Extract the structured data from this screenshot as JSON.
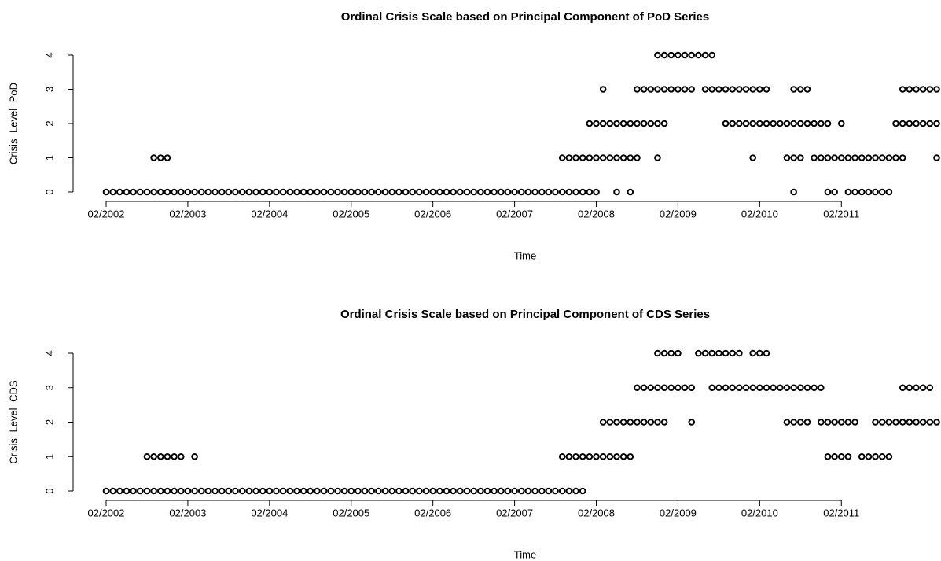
{
  "chart_data": [
    {
      "type": "scatter",
      "title": "Ordinal Crisis Scale based on Principal Component of PoD Series",
      "x_label": "Time",
      "y_label": "Crisis Level PoD",
      "xlim": [
        "2002-02",
        "2012-04"
      ],
      "xticks": [
        {
          "value": "2002-02",
          "label": "02/2002"
        },
        {
          "value": "2003-02",
          "label": "02/2003"
        },
        {
          "value": "2004-02",
          "label": "02/2004"
        },
        {
          "value": "2005-02",
          "label": "02/2005"
        },
        {
          "value": "2006-02",
          "label": "02/2006"
        },
        {
          "value": "2007-02",
          "label": "02/2007"
        },
        {
          "value": "2008-02",
          "label": "02/2008"
        },
        {
          "value": "2009-02",
          "label": "02/2009"
        },
        {
          "value": "2010-02",
          "label": "02/2010"
        },
        {
          "value": "2011-02",
          "label": "02/2011"
        }
      ],
      "ylim": [
        0,
        4
      ],
      "yticks": [
        0,
        1,
        2,
        3,
        4
      ],
      "color": "#000000",
      "x": [
        "2002-02",
        "2002-03",
        "2002-04",
        "2002-05",
        "2002-06",
        "2002-07",
        "2002-08",
        "2002-09",
        "2002-10",
        "2002-11",
        "2002-12",
        "2003-01",
        "2003-02",
        "2003-03",
        "2003-04",
        "2003-05",
        "2003-06",
        "2003-07",
        "2003-08",
        "2003-09",
        "2003-10",
        "2003-11",
        "2003-12",
        "2004-01",
        "2004-02",
        "2004-03",
        "2004-04",
        "2004-05",
        "2004-06",
        "2004-07",
        "2004-08",
        "2004-09",
        "2004-10",
        "2004-11",
        "2004-12",
        "2005-01",
        "2005-02",
        "2005-03",
        "2005-04",
        "2005-05",
        "2005-06",
        "2005-07",
        "2005-08",
        "2005-09",
        "2005-10",
        "2005-11",
        "2005-12",
        "2006-01",
        "2006-02",
        "2006-03",
        "2006-04",
        "2006-05",
        "2006-06",
        "2006-07",
        "2006-08",
        "2006-09",
        "2006-10",
        "2006-11",
        "2006-12",
        "2007-01",
        "2007-02",
        "2007-03",
        "2007-04",
        "2007-05",
        "2007-06",
        "2007-07",
        "2007-08",
        "2007-09",
        "2007-10",
        "2007-11",
        "2007-12",
        "2008-01",
        "2008-02",
        "2008-05",
        "2008-07",
        "2010-07",
        "2010-12",
        "2011-01",
        "2011-03",
        "2011-04",
        "2011-05",
        "2011-06",
        "2011-07",
        "2011-08",
        "2011-09",
        "2002-09",
        "2002-10",
        "2002-11",
        "2007-09",
        "2007-10",
        "2007-11",
        "2007-12",
        "2008-01",
        "2008-02",
        "2008-03",
        "2008-04",
        "2008-05",
        "2008-06",
        "2008-07",
        "2008-08",
        "2008-11",
        "2010-01",
        "2010-06",
        "2010-07",
        "2010-08",
        "2010-10",
        "2010-11",
        "2010-12",
        "2011-01",
        "2011-02",
        "2011-03",
        "2011-04",
        "2011-05",
        "2011-06",
        "2011-07",
        "2011-08",
        "2011-09",
        "2011-10",
        "2011-11",
        "2012-04",
        "2008-01",
        "2008-02",
        "2008-03",
        "2008-04",
        "2008-05",
        "2008-06",
        "2008-07",
        "2008-08",
        "2008-09",
        "2008-10",
        "2008-11",
        "2008-12",
        "2009-09",
        "2009-10",
        "2009-11",
        "2009-12",
        "2010-01",
        "2010-02",
        "2010-03",
        "2010-04",
        "2010-05",
        "2010-06",
        "2010-07",
        "2010-08",
        "2010-09",
        "2010-10",
        "2010-11",
        "2010-12",
        "2011-02",
        "2011-10",
        "2011-11",
        "2011-12",
        "2012-01",
        "2012-02",
        "2012-03",
        "2012-04",
        "2008-03",
        "2008-08",
        "2008-09",
        "2008-10",
        "2008-11",
        "2008-12",
        "2009-01",
        "2009-02",
        "2009-03",
        "2009-04",
        "2009-06",
        "2009-07",
        "2009-08",
        "2009-09",
        "2009-10",
        "2009-11",
        "2009-12",
        "2010-01",
        "2010-02",
        "2010-03",
        "2010-07",
        "2010-08",
        "2010-09",
        "2011-11",
        "2011-12",
        "2012-01",
        "2012-02",
        "2012-03",
        "2012-04",
        "2008-11",
        "2008-12",
        "2009-01",
        "2009-02",
        "2009-03",
        "2009-04",
        "2009-05",
        "2009-06",
        "2009-07"
      ],
      "values": [
        0,
        0,
        0,
        0,
        0,
        0,
        0,
        0,
        0,
        0,
        0,
        0,
        0,
        0,
        0,
        0,
        0,
        0,
        0,
        0,
        0,
        0,
        0,
        0,
        0,
        0,
        0,
        0,
        0,
        0,
        0,
        0,
        0,
        0,
        0,
        0,
        0,
        0,
        0,
        0,
        0,
        0,
        0,
        0,
        0,
        0,
        0,
        0,
        0,
        0,
        0,
        0,
        0,
        0,
        0,
        0,
        0,
        0,
        0,
        0,
        0,
        0,
        0,
        0,
        0,
        0,
        0,
        0,
        0,
        0,
        0,
        0,
        0,
        0,
        0,
        0,
        0,
        0,
        0,
        0,
        0,
        0,
        0,
        0,
        0,
        1,
        1,
        1,
        1,
        1,
        1,
        1,
        1,
        1,
        1,
        1,
        1,
        1,
        1,
        1,
        1,
        1,
        1,
        1,
        1,
        1,
        1,
        1,
        1,
        1,
        1,
        1,
        1,
        1,
        1,
        1,
        1,
        1,
        1,
        1,
        2,
        2,
        2,
        2,
        2,
        2,
        2,
        2,
        2,
        2,
        2,
        2,
        2,
        2,
        2,
        2,
        2,
        2,
        2,
        2,
        2,
        2,
        2,
        2,
        2,
        2,
        2,
        2,
        2,
        2,
        2,
        2,
        2,
        2,
        2,
        2,
        3,
        3,
        3,
        3,
        3,
        3,
        3,
        3,
        3,
        3,
        3,
        3,
        3,
        3,
        3,
        3,
        3,
        3,
        3,
        3,
        3,
        3,
        3,
        3,
        3,
        3,
        3,
        3,
        3,
        4,
        4,
        4,
        4,
        4,
        4,
        4,
        4,
        4
      ]
    },
    {
      "type": "scatter",
      "title": "Ordinal Crisis Scale based on Principal Component of CDS Series",
      "x_label": "Time",
      "y_label": "Crisis Level CDS",
      "xlim": [
        "2002-02",
        "2012-04"
      ],
      "xticks": [
        {
          "value": "2002-02",
          "label": "02/2002"
        },
        {
          "value": "2003-02",
          "label": "02/2003"
        },
        {
          "value": "2004-02",
          "label": "02/2004"
        },
        {
          "value": "2005-02",
          "label": "02/2005"
        },
        {
          "value": "2006-02",
          "label": "02/2006"
        },
        {
          "value": "2007-02",
          "label": "02/2007"
        },
        {
          "value": "2008-02",
          "label": "02/2008"
        },
        {
          "value": "2009-02",
          "label": "02/2009"
        },
        {
          "value": "2010-02",
          "label": "02/2010"
        },
        {
          "value": "2011-02",
          "label": "02/2011"
        }
      ],
      "ylim": [
        0,
        4
      ],
      "yticks": [
        0,
        1,
        2,
        3,
        4
      ],
      "color": "#000000",
      "x": [
        "2002-02",
        "2002-03",
        "2002-04",
        "2002-05",
        "2002-06",
        "2002-07",
        "2002-08",
        "2002-09",
        "2002-10",
        "2002-11",
        "2002-12",
        "2003-01",
        "2003-02",
        "2003-03",
        "2003-04",
        "2003-05",
        "2003-06",
        "2003-07",
        "2003-08",
        "2003-09",
        "2003-10",
        "2003-11",
        "2003-12",
        "2004-01",
        "2004-02",
        "2004-03",
        "2004-04",
        "2004-05",
        "2004-06",
        "2004-07",
        "2004-08",
        "2004-09",
        "2004-10",
        "2004-11",
        "2004-12",
        "2005-01",
        "2005-02",
        "2005-03",
        "2005-04",
        "2005-05",
        "2005-06",
        "2005-07",
        "2005-08",
        "2005-09",
        "2005-10",
        "2005-11",
        "2005-12",
        "2006-01",
        "2006-02",
        "2006-03",
        "2006-04",
        "2006-05",
        "2006-06",
        "2006-07",
        "2006-08",
        "2006-09",
        "2006-10",
        "2006-11",
        "2006-12",
        "2007-01",
        "2007-02",
        "2007-03",
        "2007-04",
        "2007-05",
        "2007-06",
        "2007-07",
        "2007-08",
        "2007-09",
        "2007-10",
        "2007-11",
        "2007-12",
        "2002-08",
        "2002-09",
        "2002-10",
        "2002-11",
        "2002-12",
        "2003-01",
        "2003-03",
        "2007-09",
        "2007-10",
        "2007-11",
        "2007-12",
        "2008-01",
        "2008-02",
        "2008-03",
        "2008-04",
        "2008-05",
        "2008-06",
        "2008-07",
        "2010-12",
        "2011-01",
        "2011-02",
        "2011-03",
        "2011-05",
        "2011-06",
        "2011-07",
        "2011-08",
        "2011-09",
        "2008-03",
        "2008-04",
        "2008-05",
        "2008-06",
        "2008-07",
        "2008-08",
        "2008-09",
        "2008-10",
        "2008-11",
        "2008-12",
        "2009-04",
        "2010-06",
        "2010-07",
        "2010-08",
        "2010-09",
        "2010-11",
        "2010-12",
        "2011-01",
        "2011-02",
        "2011-03",
        "2011-04",
        "2011-07",
        "2011-08",
        "2011-09",
        "2011-10",
        "2011-11",
        "2011-12",
        "2012-01",
        "2012-02",
        "2012-03",
        "2012-04",
        "2008-08",
        "2008-09",
        "2008-10",
        "2008-11",
        "2008-12",
        "2009-01",
        "2009-02",
        "2009-03",
        "2009-04",
        "2009-07",
        "2009-08",
        "2009-09",
        "2009-10",
        "2009-11",
        "2009-12",
        "2010-01",
        "2010-02",
        "2010-03",
        "2010-04",
        "2010-05",
        "2010-06",
        "2010-07",
        "2010-08",
        "2010-09",
        "2010-10",
        "2010-11",
        "2011-11",
        "2011-12",
        "2012-01",
        "2012-02",
        "2012-03",
        "2008-11",
        "2008-12",
        "2009-01",
        "2009-02",
        "2009-05",
        "2009-06",
        "2009-07",
        "2009-08",
        "2009-09",
        "2009-10",
        "2009-11",
        "2010-01",
        "2010-02",
        "2010-03"
      ],
      "values": [
        0,
        0,
        0,
        0,
        0,
        0,
        0,
        0,
        0,
        0,
        0,
        0,
        0,
        0,
        0,
        0,
        0,
        0,
        0,
        0,
        0,
        0,
        0,
        0,
        0,
        0,
        0,
        0,
        0,
        0,
        0,
        0,
        0,
        0,
        0,
        0,
        0,
        0,
        0,
        0,
        0,
        0,
        0,
        0,
        0,
        0,
        0,
        0,
        0,
        0,
        0,
        0,
        0,
        0,
        0,
        0,
        0,
        0,
        0,
        0,
        0,
        0,
        0,
        0,
        0,
        0,
        0,
        0,
        0,
        0,
        0,
        1,
        1,
        1,
        1,
        1,
        1,
        1,
        1,
        1,
        1,
        1,
        1,
        1,
        1,
        1,
        1,
        1,
        1,
        1,
        1,
        1,
        1,
        1,
        1,
        1,
        1,
        1,
        2,
        2,
        2,
        2,
        2,
        2,
        2,
        2,
        2,
        2,
        2,
        2,
        2,
        2,
        2,
        2,
        2,
        2,
        2,
        2,
        2,
        2,
        2,
        2,
        2,
        2,
        2,
        2,
        2,
        2,
        2,
        3,
        3,
        3,
        3,
        3,
        3,
        3,
        3,
        3,
        3,
        3,
        3,
        3,
        3,
        3,
        3,
        3,
        3,
        3,
        3,
        3,
        3,
        3,
        3,
        3,
        3,
        3,
        3,
        3,
        3,
        3,
        4,
        4,
        4,
        4,
        4,
        4,
        4,
        4,
        4,
        4,
        4,
        4,
        4,
        4
      ]
    }
  ]
}
